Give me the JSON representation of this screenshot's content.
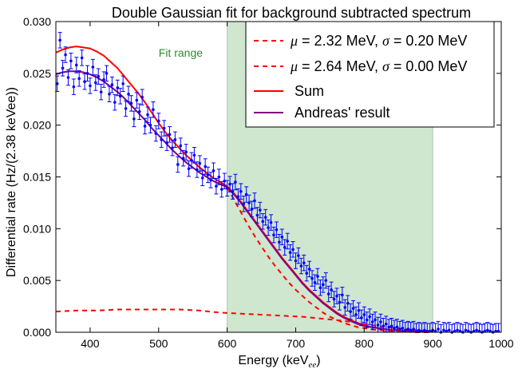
{
  "chart_data": {
    "type": "scatter",
    "title": "Double Gaussian fit for background subtracted spectrum",
    "xlabel": "Energy (keV",
    "xlabel_sub": "ee",
    "xlabel_close": ")",
    "ylabel": "Differential rate (Hz/(2.38 keVee))",
    "xlim": [
      350,
      1000
    ],
    "ylim": [
      0,
      0.03
    ],
    "xticks": [
      400,
      500,
      600,
      700,
      800,
      900,
      1000
    ],
    "xtick_labels": [
      "400",
      "500",
      "600",
      "700",
      "800",
      "900",
      "1000"
    ],
    "yticks": [
      0,
      0.005,
      0.01,
      0.015,
      0.02,
      0.025,
      0.03
    ],
    "ytick_labels": [
      "0.000",
      "0.005",
      "0.010",
      "0.015",
      "0.020",
      "0.025",
      "0.030"
    ],
    "grid": false,
    "legend_position": "top-right",
    "fit_range": {
      "label": "Fit range",
      "x": [
        600,
        900
      ],
      "color": "#cfe6cf",
      "label_color": "#2e8b2e"
    },
    "legend": [
      {
        "pre": "",
        "mu": "μ",
        "mid": " = 2.32 MeV, ",
        "sigma": "σ",
        "post": " = 0.20 MeV",
        "style": "dashed",
        "color": "#ff0000"
      },
      {
        "pre": "",
        "mu": "μ",
        "mid": " = 2.64 MeV, ",
        "sigma": "σ",
        "post": " = 0.00 MeV",
        "style": "dashed",
        "color": "#ff0000"
      },
      {
        "text": "Sum",
        "style": "solid",
        "color": "#ff0000"
      },
      {
        "text": "Andreas' result",
        "style": "solid",
        "color": "#800080"
      }
    ],
    "series": [
      {
        "name": "Sum",
        "kind": "line",
        "style": "solid",
        "color": "#ff0000",
        "x": [
          350,
          360,
          370,
          380,
          390,
          400,
          410,
          420,
          430,
          440,
          450,
          460,
          470,
          480,
          490,
          500,
          510,
          520,
          530,
          540,
          550,
          560,
          570,
          580,
          590,
          600,
          610,
          620,
          630,
          640,
          650,
          660,
          670,
          680,
          690,
          700,
          710,
          720,
          730,
          740,
          750,
          760,
          770,
          780,
          790,
          800,
          810,
          820,
          830,
          840,
          850,
          860,
          870,
          880,
          890,
          900
        ],
        "y": [
          0.027,
          0.0273,
          0.0275,
          0.0276,
          0.0275,
          0.0274,
          0.0271,
          0.0267,
          0.0261,
          0.0255,
          0.0247,
          0.0239,
          0.0231,
          0.0222,
          0.0212,
          0.0202,
          0.0193,
          0.0185,
          0.0178,
          0.0171,
          0.0165,
          0.0159,
          0.0154,
          0.0149,
          0.0145,
          0.0141,
          0.0134,
          0.0126,
          0.0117,
          0.0108,
          0.0099,
          0.009,
          0.0081,
          0.0072,
          0.0064,
          0.0056,
          0.0048,
          0.0041,
          0.0035,
          0.0029,
          0.0024,
          0.0019,
          0.0015,
          0.0012,
          0.0009,
          0.0007,
          0.0005,
          0.0004,
          0.0003,
          0.0002,
          0.0002,
          0.0001,
          0.0001,
          0.0001,
          0.0001,
          0.0001
        ]
      },
      {
        "name": "Andreas' result",
        "kind": "line",
        "style": "solid",
        "color": "#800080",
        "x": [
          350,
          360,
          370,
          380,
          390,
          400,
          410,
          420,
          430,
          440,
          450,
          460,
          470,
          480,
          490,
          500,
          510,
          520,
          530,
          540,
          550,
          560,
          570,
          580,
          590,
          600,
          610,
          620,
          630,
          640,
          650,
          660,
          670,
          680,
          690,
          700,
          710,
          720,
          730,
          740,
          750,
          760,
          770,
          780,
          790,
          800,
          810,
          820,
          830,
          840,
          850,
          860,
          870,
          880,
          890,
          900
        ],
        "y": [
          0.0249,
          0.0251,
          0.0252,
          0.0252,
          0.0251,
          0.0249,
          0.0246,
          0.0242,
          0.0237,
          0.0232,
          0.0226,
          0.0219,
          0.0212,
          0.0205,
          0.0197,
          0.019,
          0.0183,
          0.0176,
          0.017,
          0.0164,
          0.0159,
          0.0154,
          0.015,
          0.0146,
          0.0143,
          0.014,
          0.0133,
          0.0125,
          0.0116,
          0.0107,
          0.0098,
          0.0089,
          0.008,
          0.0071,
          0.0063,
          0.0055,
          0.0047,
          0.004,
          0.0034,
          0.0028,
          0.0023,
          0.0018,
          0.0014,
          0.0011,
          0.0008,
          0.0006,
          0.0005,
          0.0004,
          0.0003,
          0.0002,
          0.0002,
          0.0001,
          0.0001,
          0.0001,
          0.0001,
          0.0001
        ]
      },
      {
        "name": "μ = 2.32 MeV, σ = 0.20 MeV",
        "kind": "line",
        "style": "dashed",
        "color": "#ff0000",
        "x": [
          600,
          610,
          620,
          630,
          640,
          650,
          660,
          670,
          680,
          690,
          700,
          710,
          720,
          730,
          740,
          750,
          760,
          770,
          780,
          790,
          800,
          810,
          820,
          830,
          840,
          850,
          860,
          870,
          880,
          890,
          900
        ],
        "y": [
          0.014,
          0.0128,
          0.0116,
          0.0104,
          0.0093,
          0.0083,
          0.0073,
          0.0064,
          0.0056,
          0.0048,
          0.0041,
          0.0035,
          0.0029,
          0.0024,
          0.0019,
          0.0015,
          0.0012,
          0.0009,
          0.0007,
          0.0005,
          0.0004,
          0.0003,
          0.0002,
          0.0002,
          0.0001,
          0.0001,
          0.0001,
          0.0,
          0.0,
          0.0,
          0.0
        ]
      },
      {
        "name": "μ = 2.64 MeV, σ = 0.00 MeV",
        "kind": "line",
        "style": "dashed",
        "color": "#ff0000",
        "x": [
          350,
          380,
          410,
          440,
          470,
          500,
          530,
          560,
          590,
          620,
          650,
          680,
          710,
          740,
          770,
          800,
          830,
          860,
          890,
          900
        ],
        "y": [
          0.002,
          0.0021,
          0.0021,
          0.0022,
          0.0022,
          0.0022,
          0.0022,
          0.0021,
          0.0019,
          0.0018,
          0.0017,
          0.0016,
          0.0015,
          0.0013,
          0.0011,
          0.0008,
          0.0005,
          0.0003,
          0.0001,
          0.0001
        ]
      },
      {
        "name": "",
        "kind": "errorbar",
        "color": "#0000ff",
        "yerr": 0.00075,
        "x": [
          352,
          356,
          360,
          364,
          368,
          372,
          376,
          380,
          384,
          388,
          392,
          396,
          400,
          404,
          408,
          412,
          416,
          420,
          424,
          428,
          432,
          436,
          440,
          444,
          448,
          452,
          456,
          460,
          464,
          468,
          472,
          476,
          480,
          484,
          488,
          492,
          496,
          500,
          504,
          508,
          512,
          516,
          520,
          524,
          528,
          532,
          536,
          540,
          544,
          548,
          552,
          556,
          560,
          564,
          568,
          572,
          576,
          580,
          584,
          588,
          592,
          596,
          600,
          604,
          608,
          612,
          616,
          620,
          624,
          628,
          632,
          636,
          640,
          644,
          648,
          652,
          656,
          660,
          664,
          668,
          672,
          676,
          680,
          684,
          688,
          692,
          696,
          700,
          704,
          708,
          712,
          716,
          720,
          724,
          728,
          732,
          736,
          740,
          744,
          748,
          752,
          756,
          760,
          764,
          768,
          772,
          776,
          780,
          784,
          788,
          792,
          796,
          800,
          804,
          808,
          812,
          816,
          820,
          824,
          828,
          832,
          836,
          840,
          844,
          848,
          852,
          856,
          860,
          864,
          868,
          872,
          876,
          880,
          884,
          888,
          892,
          896,
          900,
          904,
          908,
          912,
          916,
          920,
          924,
          928,
          932,
          936,
          940,
          944,
          948,
          952,
          956,
          960,
          964,
          968,
          972,
          976,
          980,
          984,
          988,
          992,
          996
        ],
        "y": [
          0.024,
          0.0282,
          0.0255,
          0.0268,
          0.0246,
          0.0262,
          0.0237,
          0.0258,
          0.0245,
          0.0265,
          0.0242,
          0.025,
          0.0238,
          0.0256,
          0.0241,
          0.0247,
          0.0232,
          0.0244,
          0.025,
          0.023,
          0.0239,
          0.0222,
          0.0236,
          0.0228,
          0.024,
          0.0216,
          0.023,
          0.0221,
          0.0206,
          0.0224,
          0.0213,
          0.0227,
          0.0199,
          0.021,
          0.02,
          0.0215,
          0.0192,
          0.0204,
          0.0186,
          0.0197,
          0.0183,
          0.0191,
          0.0178,
          0.0186,
          0.0162,
          0.018,
          0.0168,
          0.0174,
          0.0158,
          0.0166,
          0.0171,
          0.0157,
          0.0163,
          0.0149,
          0.016,
          0.0152,
          0.0147,
          0.0156,
          0.0141,
          0.015,
          0.0138,
          0.0146,
          0.0139,
          0.0143,
          0.0136,
          0.0145,
          0.0131,
          0.0136,
          0.0124,
          0.0133,
          0.0125,
          0.0119,
          0.0127,
          0.0113,
          0.0118,
          0.0107,
          0.0111,
          0.0101,
          0.0106,
          0.0094,
          0.0099,
          0.0087,
          0.0092,
          0.0082,
          0.0088,
          0.0077,
          0.008,
          0.0069,
          0.0074,
          0.0064,
          0.0067,
          0.0057,
          0.0061,
          0.0052,
          0.0048,
          0.0054,
          0.0043,
          0.0046,
          0.005,
          0.0037,
          0.0041,
          0.0032,
          0.0035,
          0.0029,
          0.0036,
          0.0024,
          0.0028,
          0.002,
          0.0023,
          0.0017,
          0.0021,
          0.0014,
          0.0017,
          0.0012,
          0.0015,
          0.001,
          0.0012,
          0.0007,
          0.001,
          0.0006,
          0.0008,
          0.0005,
          0.0006,
          0.0004,
          0.0005,
          0.0003,
          0.0004,
          0.0002,
          0.0003,
          0.0002,
          0.0003,
          0.0001,
          0.0002,
          0.0001,
          0.0002,
          0.0001,
          0.0001,
          0.0002,
          0.0001,
          0.0003,
          0.0,
          0.0002,
          0.0001,
          0.0002,
          0.0,
          0.0001,
          0.0002,
          0.0001,
          0.0,
          0.0002,
          0.0001,
          0.0,
          0.0001,
          0.0002,
          0.0001,
          0.0,
          0.0001,
          0.0002,
          0.0001,
          0.0,
          0.0001,
          0.0001
        ]
      }
    ]
  }
}
